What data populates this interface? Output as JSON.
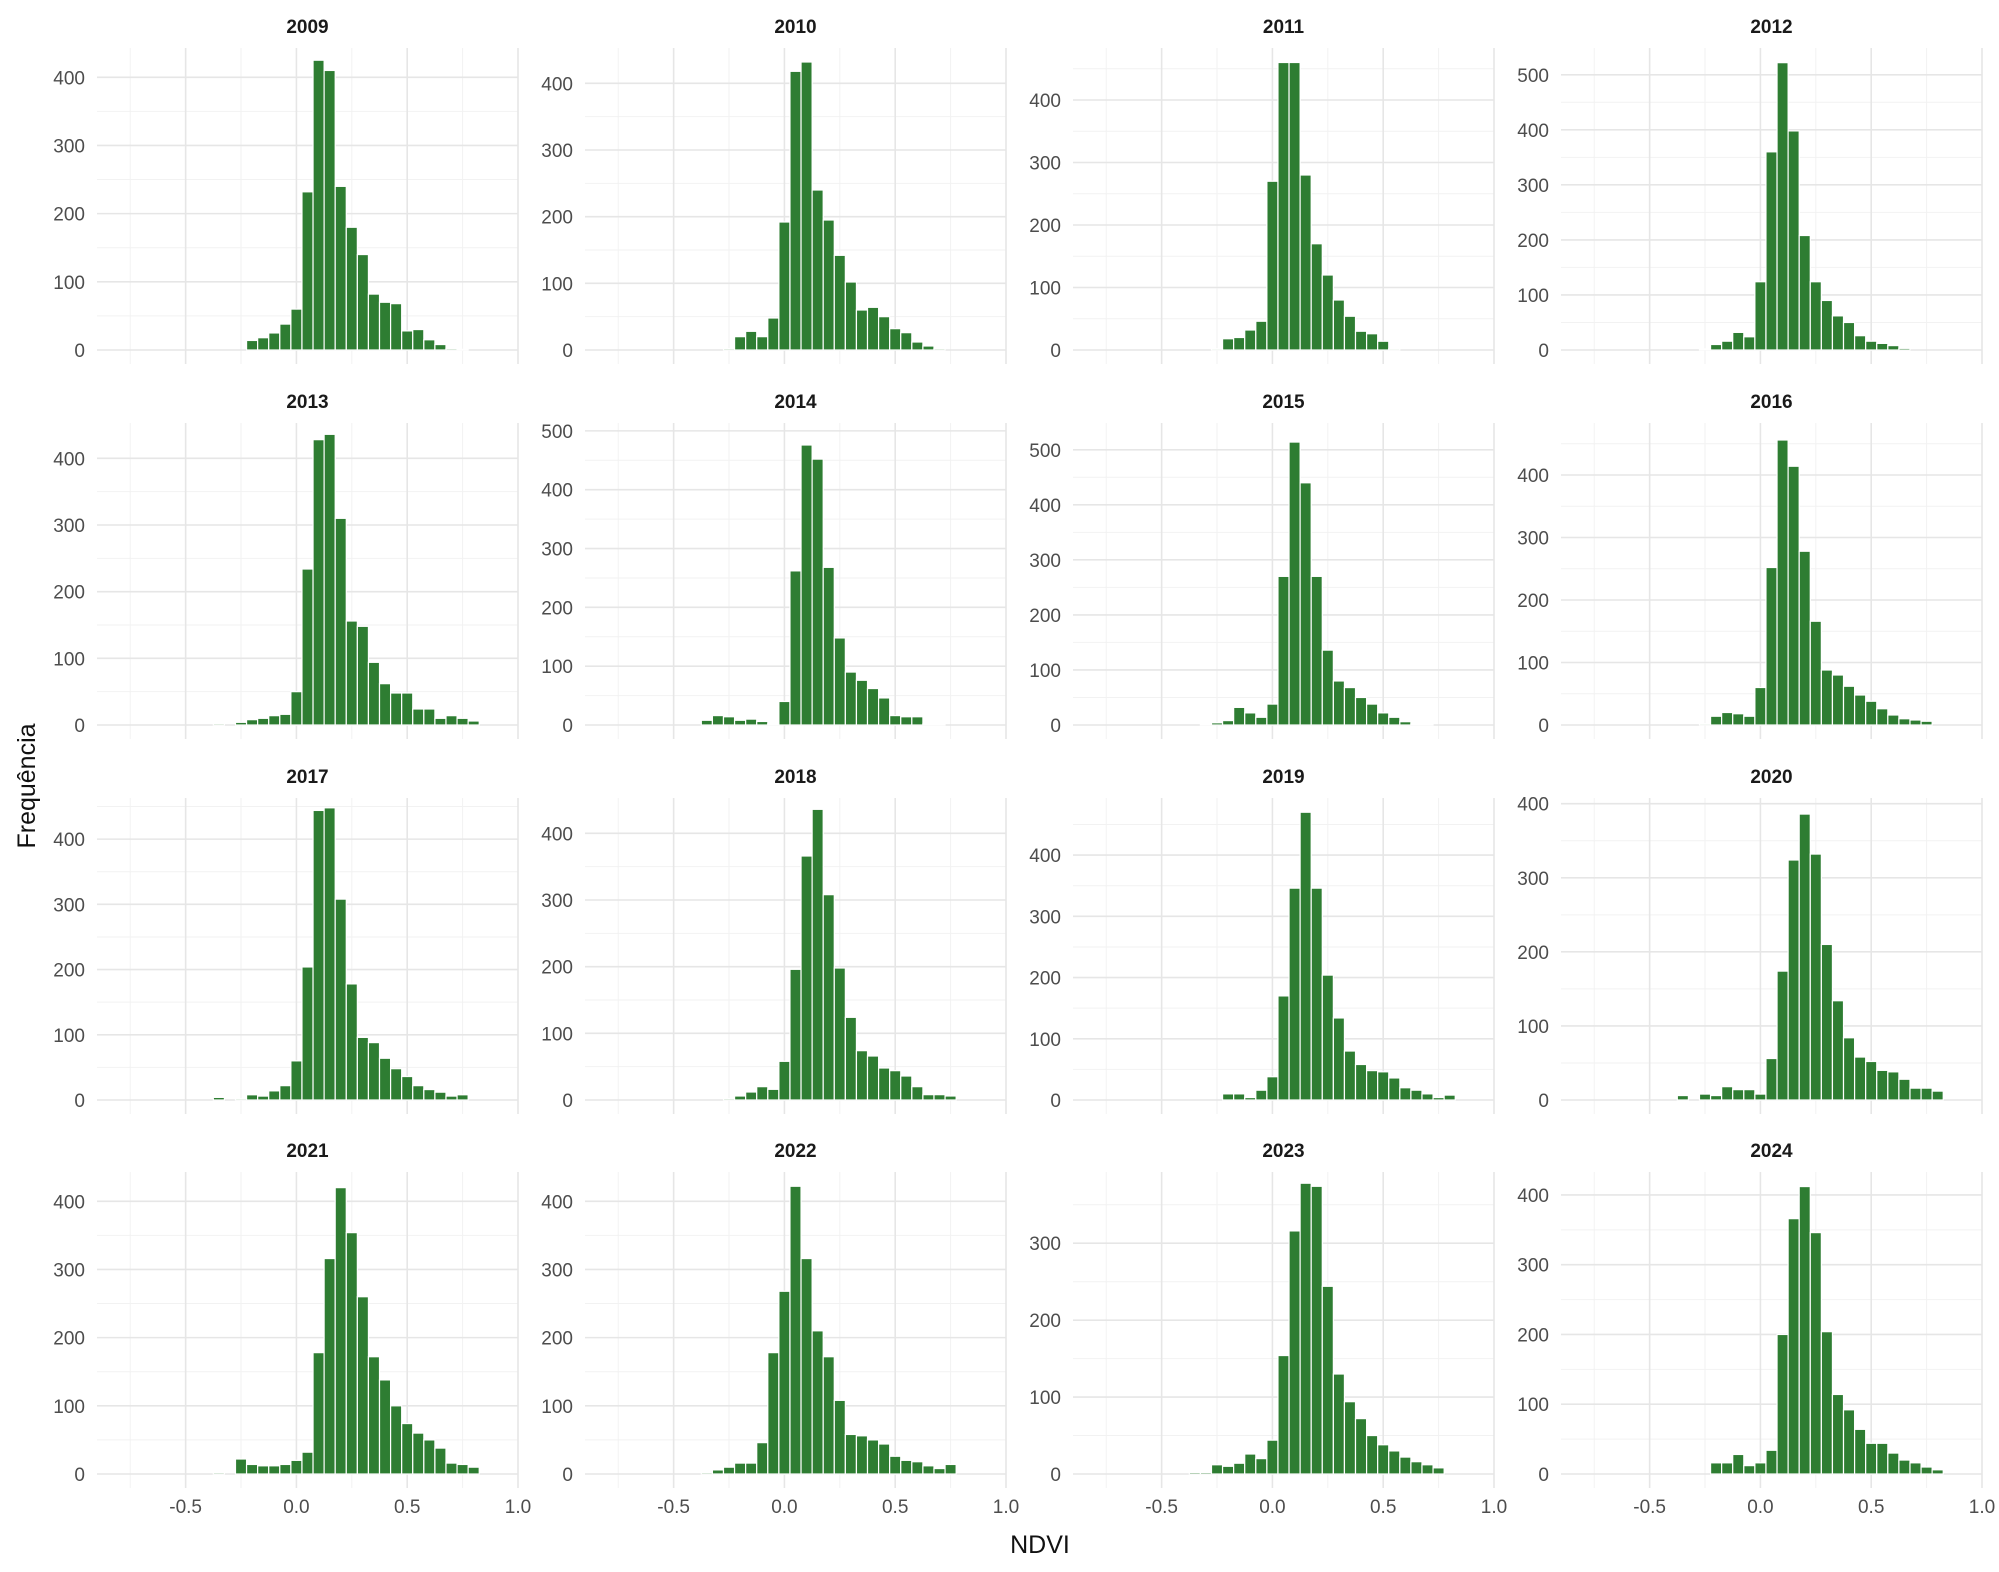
{
  "chart_data": {
    "type": "bar",
    "subtype": "histogram-facets",
    "xlabel": "NDVI",
    "ylabel": "Frequência",
    "xlim": [
      -0.9,
      1.0
    ],
    "x_ticks": [
      -0.5,
      0.0,
      0.5,
      1.0
    ],
    "x_tick_labels": [
      "-0.5",
      "0.0",
      "0.5",
      "1.0"
    ],
    "bin_width": 0.05,
    "grid": true,
    "bar_color": "#2e7d32",
    "bin_centers": [
      -0.35,
      -0.3,
      -0.25,
      -0.2,
      -0.15,
      -0.1,
      -0.05,
      0.0,
      0.05,
      0.1,
      0.15,
      0.2,
      0.25,
      0.3,
      0.35,
      0.4,
      0.45,
      0.5,
      0.55,
      0.6,
      0.65,
      0.7,
      0.75,
      0.8
    ],
    "panels": [
      {
        "title": "2009",
        "ymax": 440,
        "yticks": [
          0,
          100,
          200,
          300,
          400
        ],
        "yticklabels": [
          "0",
          "100",
          "200",
          "300",
          "400"
        ],
        "values": [
          0,
          0,
          0,
          14,
          18,
          25,
          38,
          60,
          232,
          425,
          410,
          240,
          180,
          140,
          82,
          70,
          68,
          28,
          30,
          15,
          8,
          2,
          1,
          0
        ]
      },
      {
        "title": "2010",
        "ymax": 450,
        "yticks": [
          0,
          100,
          200,
          300,
          400
        ],
        "yticklabels": [
          "0",
          "100",
          "200",
          "300",
          "400"
        ],
        "values": [
          0,
          0,
          2,
          20,
          28,
          20,
          48,
          192,
          418,
          432,
          240,
          195,
          142,
          102,
          60,
          64,
          50,
          32,
          26,
          12,
          6,
          2,
          0,
          0
        ]
      },
      {
        "title": "2011",
        "ymax": 480,
        "yticks": [
          0,
          100,
          200,
          300,
          400
        ],
        "yticklabels": [
          "0",
          "100",
          "200",
          "300",
          "400"
        ],
        "values": [
          0,
          0,
          2,
          18,
          20,
          32,
          46,
          270,
          460,
          460,
          280,
          170,
          120,
          80,
          54,
          30,
          26,
          14,
          2,
          0,
          0,
          0,
          0,
          0
        ]
      },
      {
        "title": "2012",
        "ymax": 545,
        "yticks": [
          0,
          100,
          200,
          300,
          400,
          500
        ],
        "yticklabels": [
          "0",
          "100",
          "200",
          "300",
          "400",
          "500"
        ],
        "values": [
          0,
          0,
          2,
          10,
          16,
          32,
          24,
          124,
          360,
          522,
          398,
          208,
          124,
          90,
          62,
          50,
          26,
          16,
          12,
          8,
          3,
          0,
          0,
          0
        ]
      },
      {
        "title": "2013",
        "ymax": 450,
        "yticks": [
          0,
          100,
          200,
          300,
          400
        ],
        "yticklabels": [
          "0",
          "100",
          "200",
          "300",
          "400"
        ],
        "values": [
          2,
          0,
          4,
          8,
          10,
          14,
          16,
          50,
          234,
          428,
          436,
          310,
          156,
          148,
          94,
          62,
          48,
          48,
          24,
          24,
          10,
          14,
          10,
          6
        ]
      },
      {
        "title": "2014",
        "ymax": 510,
        "yticks": [
          0,
          100,
          200,
          300,
          400,
          500
        ],
        "yticklabels": [
          "0",
          "100",
          "200",
          "300",
          "400",
          "500"
        ],
        "values": [
          8,
          16,
          14,
          8,
          10,
          6,
          2,
          40,
          262,
          476,
          452,
          268,
          148,
          90,
          76,
          62,
          46,
          16,
          14,
          14,
          2,
          2,
          0,
          0
        ]
      },
      {
        "title": "2015",
        "ymax": 545,
        "yticks": [
          0,
          100,
          200,
          300,
          400,
          500
        ],
        "yticklabels": [
          "0",
          "100",
          "200",
          "300",
          "400",
          "500"
        ],
        "values": [
          0,
          2,
          4,
          8,
          32,
          22,
          14,
          38,
          270,
          514,
          440,
          270,
          136,
          80,
          68,
          50,
          38,
          22,
          14,
          6,
          2,
          2,
          0,
          0
        ]
      },
      {
        "title": "2016",
        "ymax": 480,
        "yticks": [
          0,
          100,
          200,
          300,
          400
        ],
        "yticklabels": [
          "0",
          "100",
          "200",
          "300",
          "400"
        ],
        "values": [
          0,
          0,
          2,
          14,
          20,
          18,
          14,
          60,
          252,
          456,
          414,
          278,
          166,
          88,
          80,
          62,
          48,
          38,
          26,
          16,
          10,
          8,
          6,
          0
        ]
      },
      {
        "title": "2017",
        "ymax": 460,
        "yticks": [
          0,
          100,
          200,
          300,
          400
        ],
        "yticklabels": [
          "0",
          "100",
          "200",
          "300",
          "400"
        ],
        "values": [
          4,
          0,
          2,
          8,
          6,
          14,
          22,
          60,
          204,
          444,
          448,
          308,
          178,
          96,
          88,
          64,
          48,
          36,
          22,
          16,
          12,
          6,
          8,
          0
        ]
      },
      {
        "title": "2018",
        "ymax": 450,
        "yticks": [
          0,
          100,
          200,
          300,
          400
        ],
        "yticklabels": [
          "0",
          "100",
          "200",
          "300",
          "400"
        ],
        "values": [
          0,
          0,
          2,
          6,
          12,
          20,
          16,
          58,
          196,
          366,
          436,
          308,
          198,
          124,
          74,
          66,
          48,
          44,
          36,
          20,
          8,
          8,
          6,
          0
        ]
      },
      {
        "title": "2019",
        "ymax": 490,
        "yticks": [
          0,
          100,
          200,
          300,
          400
        ],
        "yticklabels": [
          "0",
          "100",
          "200",
          "300",
          "400"
        ],
        "values": [
          0,
          0,
          0,
          10,
          10,
          4,
          16,
          38,
          170,
          346,
          470,
          346,
          204,
          134,
          80,
          58,
          48,
          46,
          36,
          20,
          16,
          10,
          4,
          8
        ]
      },
      {
        "title": "2020",
        "ymax": 405,
        "yticks": [
          0,
          100,
          200,
          300,
          400
        ],
        "yticklabels": [
          "0",
          "100",
          "200",
          "300",
          "400"
        ],
        "values": [
          6,
          0,
          8,
          6,
          18,
          14,
          14,
          8,
          56,
          174,
          324,
          386,
          332,
          210,
          134,
          84,
          58,
          52,
          40,
          38,
          28,
          16,
          16,
          12
        ]
      },
      {
        "title": "2021",
        "ymax": 440,
        "yticks": [
          0,
          100,
          200,
          300,
          400
        ],
        "yticklabels": [
          "0",
          "100",
          "200",
          "300",
          "400"
        ],
        "values": [
          2,
          0,
          22,
          14,
          12,
          12,
          14,
          20,
          32,
          178,
          316,
          420,
          354,
          260,
          172,
          138,
          100,
          74,
          60,
          50,
          38,
          16,
          14,
          10
        ]
      },
      {
        "title": "2022",
        "ymax": 440,
        "yticks": [
          0,
          100,
          200,
          300,
          400
        ],
        "yticklabels": [
          "0",
          "100",
          "200",
          "300",
          "400"
        ],
        "values": [
          2,
          6,
          10,
          16,
          16,
          46,
          178,
          268,
          422,
          316,
          210,
          172,
          108,
          58,
          56,
          50,
          44,
          26,
          20,
          18,
          12,
          8,
          14,
          0
        ]
      },
      {
        "title": "2023",
        "ymax": 390,
        "yticks": [
          0,
          100,
          200,
          300
        ],
        "yticklabels": [
          "0",
          "100",
          "200",
          "300"
        ],
        "values": [
          2,
          2,
          12,
          10,
          14,
          26,
          20,
          44,
          154,
          316,
          378,
          374,
          244,
          130,
          94,
          72,
          50,
          38,
          30,
          22,
          16,
          12,
          8,
          0
        ]
      },
      {
        "title": "2024",
        "ymax": 430,
        "yticks": [
          0,
          100,
          200,
          300,
          400
        ],
        "yticklabels": [
          "0",
          "100",
          "200",
          "300",
          "400"
        ],
        "values": [
          0,
          0,
          0,
          16,
          16,
          28,
          12,
          16,
          34,
          200,
          366,
          412,
          346,
          204,
          114,
          92,
          64,
          44,
          44,
          30,
          20,
          16,
          10,
          6
        ]
      }
    ]
  }
}
